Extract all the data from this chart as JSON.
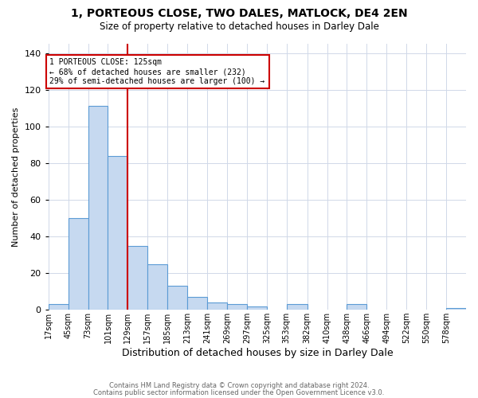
{
  "title": "1, PORTEOUS CLOSE, TWO DALES, MATLOCK, DE4 2EN",
  "subtitle": "Size of property relative to detached houses in Darley Dale",
  "xlabel": "Distribution of detached houses by size in Darley Dale",
  "ylabel": "Number of detached properties",
  "bin_labels": [
    "17sqm",
    "45sqm",
    "73sqm",
    "101sqm",
    "129sqm",
    "157sqm",
    "185sqm",
    "213sqm",
    "241sqm",
    "269sqm",
    "297sqm",
    "325sqm",
    "353sqm",
    "382sqm",
    "410sqm",
    "438sqm",
    "466sqm",
    "494sqm",
    "522sqm",
    "550sqm",
    "578sqm"
  ],
  "bin_edges": [
    17,
    45,
    73,
    101,
    129,
    157,
    185,
    213,
    241,
    269,
    297,
    325,
    353,
    382,
    410,
    438,
    466,
    494,
    522,
    550,
    578,
    606
  ],
  "bar_heights": [
    3,
    50,
    111,
    84,
    35,
    25,
    13,
    7,
    4,
    3,
    2,
    0,
    3,
    0,
    0,
    3,
    0,
    0,
    0,
    0,
    1
  ],
  "bar_color": "#c6d9f0",
  "bar_edge_color": "#5b9bd5",
  "vline_x": 129,
  "vline_color": "#cc0000",
  "ylim": [
    0,
    145
  ],
  "yticks": [
    0,
    20,
    40,
    60,
    80,
    100,
    120,
    140
  ],
  "annotation_title": "1 PORTEOUS CLOSE: 125sqm",
  "annotation_line1": "← 68% of detached houses are smaller (232)",
  "annotation_line2": "29% of semi-detached houses are larger (100) →",
  "annotation_box_color": "#ffffff",
  "annotation_box_edge_color": "#cc0000",
  "footer1": "Contains HM Land Registry data © Crown copyright and database right 2024.",
  "footer2": "Contains public sector information licensed under the Open Government Licence v3.0.",
  "background_color": "#ffffff",
  "grid_color": "#d0d8e8"
}
